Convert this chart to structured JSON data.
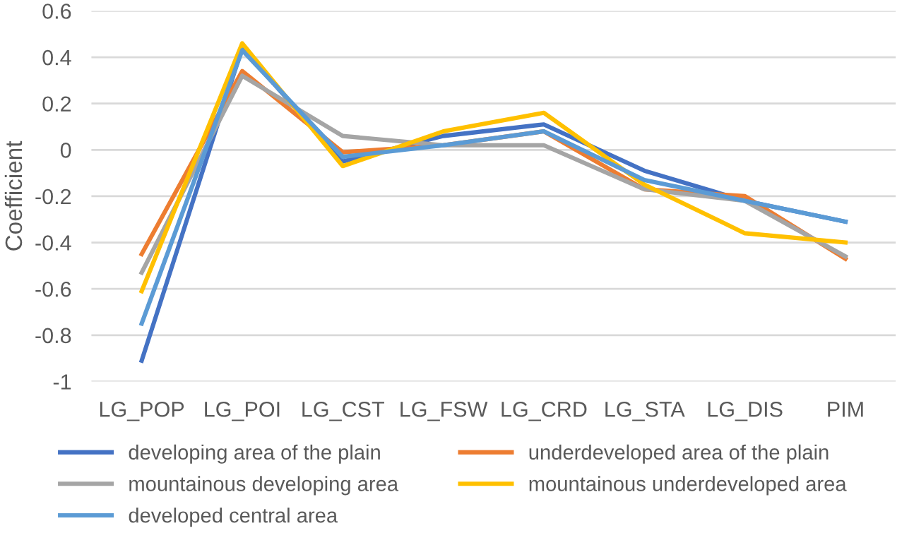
{
  "chart_data": {
    "type": "line",
    "ylabel": "Coefficient",
    "categories": [
      "LG_POP",
      "LG_POI",
      "LG_CST",
      "LG_FSW",
      "LG_CRD",
      "LG_STA",
      "LG_DIS",
      "PIM"
    ],
    "series": [
      {
        "name": "developing area of the plain",
        "color": "#4472c4",
        "values": [
          -0.91,
          0.44,
          -0.05,
          0.06,
          0.11,
          -0.09,
          -0.22,
          -0.31
        ]
      },
      {
        "name": "underdeveloped area of the plain",
        "color": "#ed7d31",
        "values": [
          -0.45,
          0.34,
          -0.01,
          0.02,
          0.08,
          -0.17,
          -0.2,
          -0.47
        ]
      },
      {
        "name": "mountainous developing area",
        "color": "#a5a5a5",
        "values": [
          -0.53,
          0.32,
          0.06,
          0.02,
          0.02,
          -0.17,
          -0.22,
          -0.46
        ]
      },
      {
        "name": "mountainous underdeveloped area",
        "color": "#ffc000",
        "values": [
          -0.61,
          0.46,
          -0.07,
          0.08,
          0.16,
          -0.15,
          -0.36,
          -0.4
        ]
      },
      {
        "name": "developed central area",
        "color": "#5b9bd5",
        "values": [
          -0.75,
          0.43,
          -0.03,
          0.02,
          0.08,
          -0.13,
          -0.22,
          -0.31
        ]
      }
    ],
    "ylim": [
      -1,
      0.6
    ],
    "yticks": [
      0.6,
      0.4,
      0.2,
      {
        "value": 0,
        "label": "0"
      },
      -0.2,
      -0.4,
      -0.6,
      -0.8,
      {
        "value": -1,
        "label": "-1"
      }
    ],
    "grid": "y",
    "legend": "bottom",
    "marker": "none",
    "line_style": "solid"
  }
}
